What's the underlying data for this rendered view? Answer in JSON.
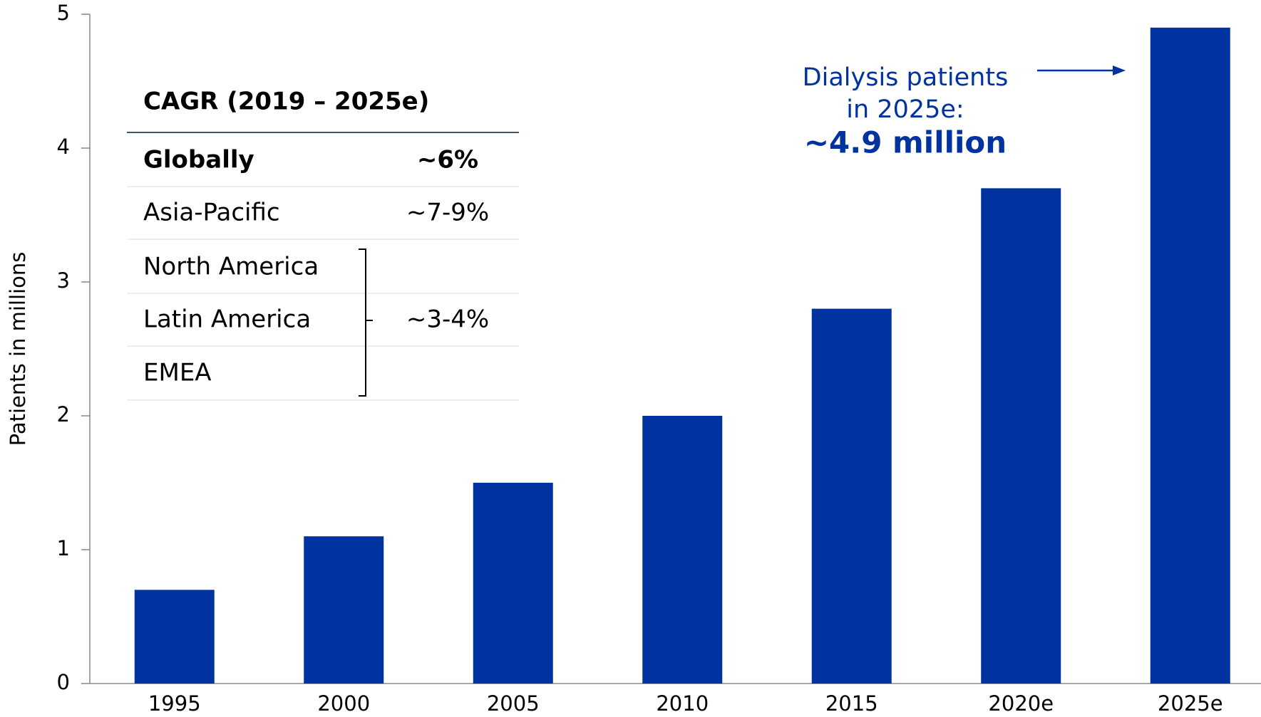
{
  "chart_data": {
    "type": "bar",
    "y_label": "Patients in millions",
    "categories": [
      "1995",
      "2000",
      "2005",
      "2010",
      "2015",
      "2020e",
      "2025e"
    ],
    "values": [
      0.7,
      1.1,
      1.5,
      2.0,
      2.8,
      3.7,
      4.9
    ],
    "color": "#0033a0",
    "ylim": [
      0,
      5
    ],
    "yticks": [
      0,
      1,
      2,
      3,
      4,
      5
    ],
    "grid": false,
    "annotation": {
      "lines": [
        "Dialysis patients",
        "in 2025e:"
      ],
      "highlight": "~4.9 million"
    },
    "cagr_table": {
      "title": "CAGR (2019 – 2025e)",
      "rows": [
        {
          "label": "Globally",
          "value": "~6%"
        },
        {
          "label": "Asia-Pacific",
          "value": "~7-9%"
        }
      ],
      "group": {
        "labels": [
          "North America",
          "Latin America",
          "EMEA"
        ],
        "value": "~3-4%"
      }
    }
  }
}
